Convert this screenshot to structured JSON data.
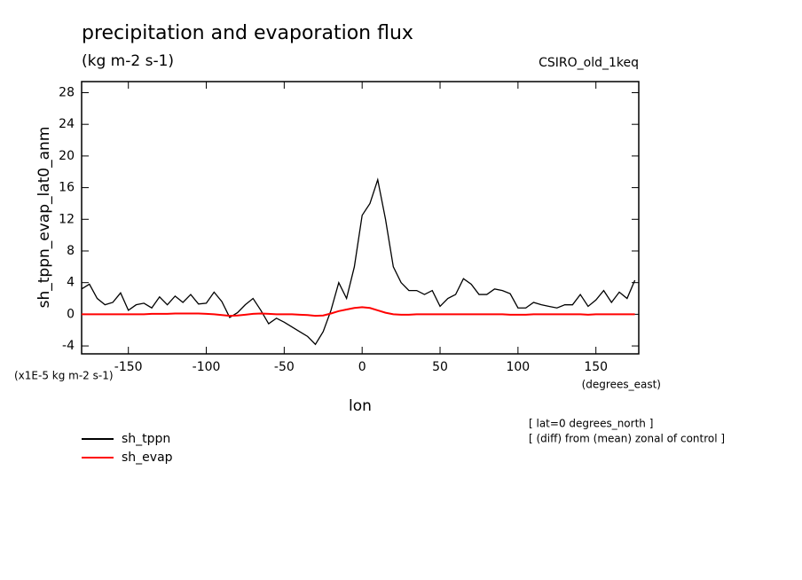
{
  "chart_data": {
    "type": "line",
    "title": "precipitation and evaporation flux",
    "subtitle": "(kg m-2 s-1)",
    "dataset": "CSIRO_old_1keq",
    "y_label": "sh_tppn_evap_lat0_anm",
    "x_label": "lon",
    "x_units": "(degrees_east)",
    "y_units": "(x1E-5 kg m-2 s-1)",
    "notes": [
      "[ lat=0 degrees_north ]",
      "[ (diff) from (mean) zonal of control ]"
    ],
    "x": [
      -180,
      -175,
      -170,
      -165,
      -160,
      -155,
      -150,
      -145,
      -140,
      -135,
      -130,
      -125,
      -120,
      -115,
      -110,
      -105,
      -100,
      -95,
      -90,
      -85,
      -80,
      -75,
      -70,
      -65,
      -60,
      -55,
      -50,
      -45,
      -40,
      -35,
      -30,
      -25,
      -20,
      -15,
      -10,
      -5,
      0,
      5,
      10,
      15,
      20,
      25,
      30,
      35,
      40,
      45,
      50,
      55,
      60,
      65,
      70,
      75,
      80,
      85,
      90,
      95,
      100,
      105,
      110,
      115,
      120,
      125,
      130,
      135,
      140,
      145,
      150,
      155,
      160,
      165,
      170,
      175
    ],
    "series": [
      {
        "name": "sh_tppn",
        "color": "#000000",
        "values": [
          3.2,
          3.8,
          2,
          1.2,
          1.5,
          2.7,
          0.5,
          1.2,
          1.4,
          0.8,
          2.2,
          1.2,
          2.3,
          1.5,
          2.5,
          1.3,
          1.4,
          2.8,
          1.6,
          -0.4,
          0.2,
          1.2,
          2,
          0.5,
          -1.2,
          -0.5,
          -1,
          -1.6,
          -2.2,
          -2.8,
          -3.8,
          -2.2,
          0.5,
          4,
          2,
          6,
          12.5,
          14,
          17,
          12,
          6,
          4,
          3,
          3,
          2.5,
          3,
          1,
          2,
          2.5,
          4.5,
          3.8,
          2.5,
          2.5,
          3.2,
          3,
          2.6,
          0.8,
          0.8,
          1.5,
          1.2,
          1,
          0.8,
          1.2,
          1.2,
          2.5,
          1,
          1.8,
          3,
          1.5,
          2.8,
          2,
          4.3
        ]
      },
      {
        "name": "sh_evap",
        "color": "#ff0000",
        "values": [
          0,
          0,
          0,
          0,
          0,
          0,
          0,
          0,
          0,
          0.05,
          0.05,
          0.05,
          0.1,
          0.1,
          0.1,
          0.1,
          0.05,
          0,
          -0.1,
          -0.2,
          -0.15,
          -0.05,
          0.05,
          0.1,
          0.05,
          0,
          0,
          0,
          -0.05,
          -0.1,
          -0.2,
          -0.15,
          0.1,
          0.4,
          0.6,
          0.8,
          0.9,
          0.8,
          0.5,
          0.2,
          0,
          -0.05,
          -0.05,
          0,
          0,
          0,
          0,
          0,
          0,
          0,
          0,
          0,
          0,
          0,
          0,
          -0.05,
          -0.05,
          -0.05,
          0,
          0,
          0,
          0,
          0,
          0,
          0,
          -0.05,
          0,
          0,
          0,
          0,
          0,
          0
        ]
      }
    ],
    "xlim": [
      -180,
      177.5
    ],
    "ylim": [
      -5,
      29.4
    ],
    "xticks": [
      -150,
      -100,
      -50,
      0,
      50,
      100,
      150
    ],
    "yticks": [
      -4,
      0,
      4,
      8,
      12,
      16,
      20,
      24,
      28
    ],
    "legend": "bottom-left"
  }
}
